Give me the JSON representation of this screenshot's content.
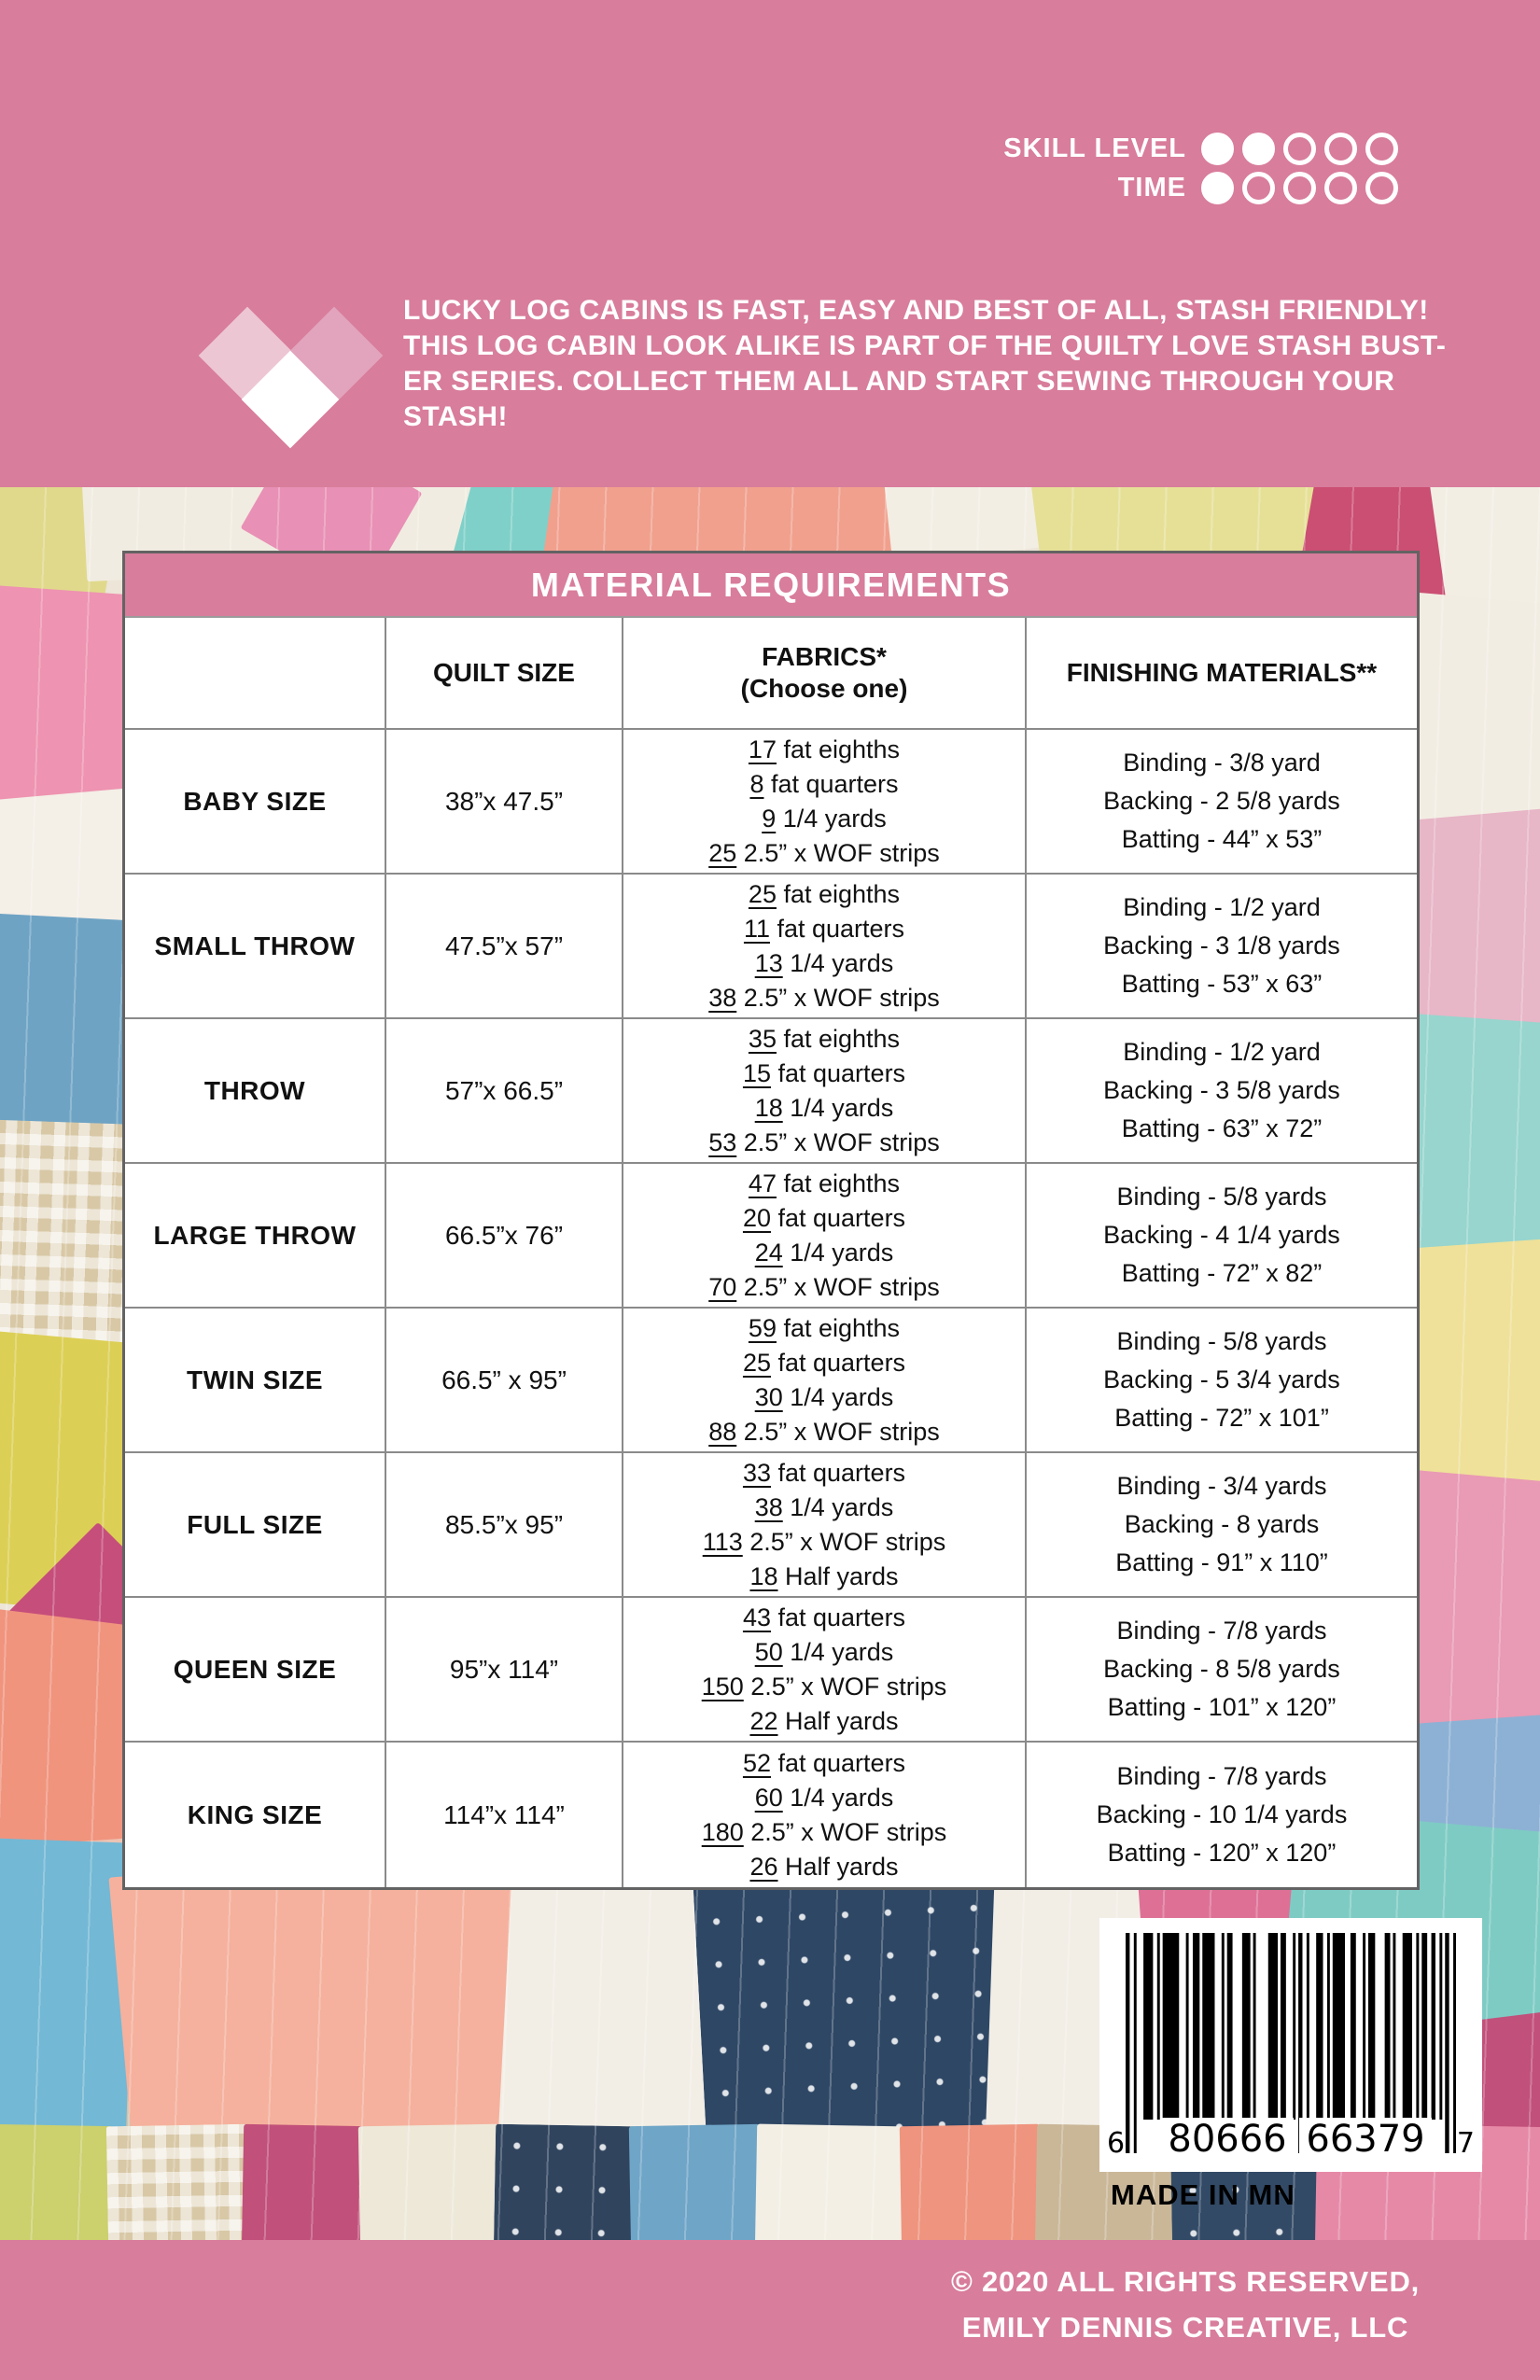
{
  "colors": {
    "background_pink": "#d87d9b",
    "heart_light_pink": "#edc6d4",
    "heart_mid_pink": "#e2a4bd",
    "heart_white": "#ffffff"
  },
  "indicators": {
    "skill_label": "SKILL LEVEL",
    "skill_filled": 2,
    "skill_total": 5,
    "time_label": "TIME",
    "time_filled": 1,
    "time_total": 5
  },
  "description_lines": [
    "LUCKY LOG CABINS IS FAST, EASY AND BEST OF ALL, STASH FRIENDLY!",
    "THIS LOG CABIN LOOK ALIKE IS PART OF THE QUILTY LOVE STASH BUST-",
    "ER SERIES.  COLLECT THEM ALL AND START SEWING THROUGH YOUR",
    "STASH!"
  ],
  "table": {
    "title": "MATERIAL REQUIREMENTS",
    "columns": [
      {
        "label": ""
      },
      {
        "label": "QUILT SIZE"
      },
      {
        "label": "FABRICS*",
        "sublabel": "(Choose one)"
      },
      {
        "label": "FINISHING MATERIALS**"
      }
    ],
    "rows": [
      {
        "name": "BABY SIZE",
        "quilt_size": "38”x 47.5”",
        "fabrics": [
          {
            "qty": "17",
            "text": "fat eighths"
          },
          {
            "qty": "8",
            "text": "fat quarters"
          },
          {
            "qty": "9",
            "text": "1/4 yards"
          },
          {
            "qty": "25",
            "text": "2.5” x WOF strips"
          }
        ],
        "finishing": [
          "Binding - 3/8 yard",
          "Backing - 2 5/8 yards",
          "Batting - 44” x 53”"
        ]
      },
      {
        "name": "SMALL THROW",
        "quilt_size": "47.5”x 57”",
        "fabrics": [
          {
            "qty": "25",
            "text": "fat eighths"
          },
          {
            "qty": "11",
            "text": "fat quarters"
          },
          {
            "qty": "13",
            "text": "1/4 yards"
          },
          {
            "qty": "38",
            "text": "2.5” x WOF strips"
          }
        ],
        "finishing": [
          "Binding - 1/2 yard",
          "Backing -  3 1/8 yards",
          "Batting -  53” x 63”"
        ]
      },
      {
        "name": "THROW",
        "quilt_size": "57”x 66.5”",
        "fabrics": [
          {
            "qty": "35",
            "text": "fat eighths"
          },
          {
            "qty": "15",
            "text": "fat quarters"
          },
          {
            "qty": "18",
            "text": "1/4 yards"
          },
          {
            "qty": "53",
            "text": "2.5” x WOF strips"
          }
        ],
        "finishing": [
          "Binding -  1/2 yard",
          "Backing -  3 5/8 yards",
          "Batting -  63” x 72”"
        ]
      },
      {
        "name": "LARGE THROW",
        "quilt_size": "66.5”x 76”",
        "fabrics": [
          {
            "qty": "47",
            "text": "fat eighths"
          },
          {
            "qty": "20",
            "text": "fat quarters"
          },
          {
            "qty": "24",
            "text": "1/4 yards"
          },
          {
            "qty": "70",
            "text": "2.5” x WOF strips"
          }
        ],
        "finishing": [
          "Binding -  5/8 yards",
          "Backing -  4 1/4 yards",
          "Batting -  72” x 82”"
        ]
      },
      {
        "name": "TWIN SIZE",
        "quilt_size": "66.5” x 95”",
        "fabrics": [
          {
            "qty": "59",
            "text": "fat eighths"
          },
          {
            "qty": "25",
            "text": "fat quarters"
          },
          {
            "qty": "30",
            "text": "1/4 yards"
          },
          {
            "qty": "88",
            "text": "2.5” x WOF strips"
          }
        ],
        "finishing": [
          "Binding -  5/8 yards",
          "Backing -  5 3/4 yards",
          "Batting -  72” x 101”"
        ]
      },
      {
        "name": "FULL SIZE",
        "quilt_size": "85.5”x 95”",
        "fabrics": [
          {
            "qty": "33",
            "text": "fat quarters"
          },
          {
            "qty": "38",
            "text": "1/4 yards"
          },
          {
            "qty": "113",
            "text": "2.5” x WOF strips"
          },
          {
            "qty": "18",
            "text": "Half yards"
          }
        ],
        "finishing": [
          "Binding - 3/4 yards",
          "Backing -  8 yards",
          "Batting -  91” x 110”"
        ]
      },
      {
        "name": "QUEEN SIZE",
        "quilt_size": "95”x 114”",
        "fabrics": [
          {
            "qty": "43",
            "text": "fat quarters"
          },
          {
            "qty": "50",
            "text": "1/4 yards"
          },
          {
            "qty": "150",
            "text": "2.5” x WOF strips"
          },
          {
            "qty": "22",
            "text": "Half yards"
          }
        ],
        "finishing": [
          "Binding -  7/8 yards",
          "Backing -  8 5/8 yards",
          "Batting -  101” x 120”"
        ]
      },
      {
        "name": "KING SIZE",
        "quilt_size": "114”x 114”",
        "fabrics": [
          {
            "qty": "52",
            "text": "fat quarters"
          },
          {
            "qty": "60",
            "text": "1/4 yards"
          },
          {
            "qty": "180",
            "text": "2.5” x WOF strips"
          },
          {
            "qty": "26",
            "text": "Half yards"
          }
        ],
        "finishing": [
          "Binding -  7/8 yards",
          "Backing -  10 1/4 yards",
          "Batting -  120” x 120”"
        ]
      }
    ]
  },
  "barcode": {
    "left_digit": "6",
    "group1": "80666",
    "group2": "66379",
    "right_digit": "7",
    "made_in": "MADE IN MN"
  },
  "footer": {
    "line1": "© 2020 ALL RIGHTS RESERVED,",
    "line2": "EMILY DENNIS CREATIVE, LLC"
  }
}
